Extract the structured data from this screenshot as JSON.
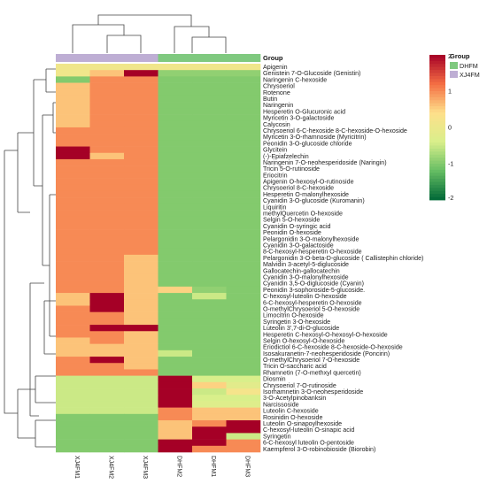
{
  "chart_data": {
    "type": "heatmap",
    "title": "",
    "columns": [
      "XJ4FM1",
      "XJ4FM2",
      "XJ4FM3",
      "DHFM2",
      "DHFM1",
      "DHFM3"
    ],
    "column_groups": [
      "XJ4FM",
      "XJ4FM",
      "XJ4FM",
      "DHFM",
      "DHFM",
      "DHFM"
    ],
    "group_label": "Group",
    "group_colors": {
      "DHFM": "#7fc97f",
      "XJ4FM": "#beaed4"
    },
    "color_scale": {
      "min": -2,
      "max": 2,
      "ticks": [
        "2",
        "1",
        "0",
        "-1",
        "-2"
      ],
      "stops": [
        "#006837",
        "#66bd63",
        "#d9ef8b",
        "#fee08b",
        "#f46d43",
        "#a50026"
      ]
    },
    "rows": [
      "Apigenin",
      "Genistein 7-O-Glucoside (Genistin)",
      "Naringenin C-hexoside",
      "Chrysoeriol",
      "Rotenone",
      "Butin",
      "Naringenin",
      "Hesperetin O-Glucuronic acid",
      "Myricetin 3-O-galactoside",
      "Calycosin",
      "Chrysoeriol 6-C-hexoside 8-C-hexoside-O-hexoside",
      "Myricetin 3-O-rhamnoside (Myricitrin)",
      "Peonidin 3-O-glucoside chloride",
      "Glycitein",
      "(-)-Epiafzelechin",
      "Naringenin 7-O-neohesperidoside (Naringin)",
      "Tricin 5-O-rutinoside",
      "Eriocitrin",
      "Apigenin O-hexosyl-O-rutinoside",
      "Chrysoeriol 8-C-hexoside",
      "Hesperetin O-malonylhexoside",
      "Cyanidin 3-O-glucoside (Kuromanin)",
      "Liquiritin",
      "methylQuercetin O-hexoside",
      "Selgin 5-O-hexoside",
      "Cyanidin O-syringic acid",
      "Peonidin O-hexoside",
      "Pelargonidin 3-O-malonylhexoside",
      "Cyanidin 3-O-galactoside",
      "8-C-hexosyl-hesperetin O-hexoside",
      "Pelargonidin 3-O-beta-D-glucoside ( Callistephin chloride)",
      "Malvidin 3-acetyl-5-diglucoside",
      "Gallocatechin-gallocatechin",
      "Cyanidin 3-O-malonylhexoside",
      "Cyanidin 3,5-O-diglucoside (Cyanin)",
      "Peonidin 3-sophoroside-5-glucoside.",
      "C-hexosyl-luteolin O-hexoside",
      "6-C-hexosyl-hesperetin O-hexoside",
      "O-methylChrysoeriol 5-O-hexoside",
      "Limocitrin O-hexoside",
      "Syringetin 3-O-hexoside",
      "Luteolin 3',7-di-O-glucoside",
      "Hesperetin C-hexosyl-O-hexosyl-O-hexoside",
      "Selgin O-hexosyl-O-hexoside",
      "Eriodictiol 6-C-hexoside 8-C-hexoside-O-hexoside",
      "Isosakuranetin-7-neohesperidoside (Poncirin)",
      "O-methylChrysoeriol 7-O-hexoside",
      "Tricin O-saccharic acid",
      "Rhamnetin (7-O-methxyl quercetin)",
      "Diosmin",
      "Chrysoeriol 7-O-rutinoside",
      "Isorhamnetin 3-O-neohesperidoside",
      "3-O-Acetylpinobanksin",
      "Narcissoside",
      "Luteolin C-hexoside",
      "Rosinidin O-hexoside",
      "Luteolin O-sinapoylhexoside",
      "C-hexosyl-luteolin O-sinapic acid",
      "Syringetin",
      "6-C-hexosyl luteolin O-pentoside",
      "Kaempferol 3-O-robinobioside (Biorobin)"
    ],
    "values": [
      [
        0.1,
        0.1,
        0.1,
        0.1,
        0.1,
        0.1
      ],
      [
        0.1,
        0.6,
        2.0,
        -0.9,
        -0.9,
        -0.9
      ],
      [
        -1,
        1,
        1,
        -1,
        -1,
        -1
      ],
      [
        0.6,
        1,
        1,
        -1,
        -1,
        -1
      ],
      [
        0.6,
        1,
        1,
        -1,
        -1,
        -1
      ],
      [
        0.6,
        1,
        1,
        -1,
        -1,
        -1
      ],
      [
        0.6,
        1,
        1,
        -1,
        -1,
        -1
      ],
      [
        0.6,
        1,
        1,
        -1,
        -1,
        -1
      ],
      [
        0.6,
        1,
        1,
        -1,
        -1,
        -1
      ],
      [
        0.6,
        1,
        1,
        -1,
        -1,
        -1
      ],
      [
        1,
        1,
        1,
        -1,
        -1,
        -1
      ],
      [
        1,
        1,
        1,
        -1,
        -1,
        -1
      ],
      [
        1,
        1,
        1,
        -1,
        -1,
        -1
      ],
      [
        2,
        1,
        1,
        -1,
        -1,
        -1
      ],
      [
        2,
        0.6,
        1,
        -1,
        -1,
        -1
      ],
      [
        1,
        1,
        1,
        -1,
        -1,
        -1
      ],
      [
        1,
        1,
        1,
        -1,
        -1,
        -1
      ],
      [
        1,
        1,
        1,
        -1,
        -1,
        -1
      ],
      [
        1,
        1,
        1,
        -1,
        -1,
        -1
      ],
      [
        1,
        1,
        1,
        -1,
        -1,
        -1
      ],
      [
        1,
        1,
        1,
        -1,
        -1,
        -1
      ],
      [
        1,
        1,
        1,
        -1,
        -1,
        -1
      ],
      [
        1,
        1,
        1,
        -1,
        -1,
        -1
      ],
      [
        1,
        1,
        1,
        -1,
        -1,
        -1
      ],
      [
        1,
        1,
        1,
        -1,
        -1,
        -1
      ],
      [
        1,
        1,
        1,
        -1,
        -1,
        -1
      ],
      [
        1,
        1,
        1,
        -1,
        -1,
        -1
      ],
      [
        1,
        1,
        1,
        -1,
        -1,
        -1
      ],
      [
        1,
        1,
        1,
        -1,
        -1,
        -1
      ],
      [
        1,
        1,
        1,
        -1,
        -1,
        -1
      ],
      [
        1,
        1,
        0.6,
        -1,
        -1,
        -1
      ],
      [
        1,
        1,
        0.6,
        -1,
        -1,
        -1
      ],
      [
        1,
        1,
        0.6,
        -1,
        -1,
        -1
      ],
      [
        1,
        1,
        0.6,
        -1,
        -1,
        -1
      ],
      [
        1,
        1,
        0.6,
        -1,
        -1,
        -1
      ],
      [
        1,
        1,
        0.6,
        0.5,
        -0.9,
        -1
      ],
      [
        0.6,
        2,
        0.6,
        -1,
        -0.5,
        -1
      ],
      [
        0.6,
        2,
        0.6,
        -1,
        -1,
        -1
      ],
      [
        1,
        2,
        0.6,
        -1,
        -1,
        -1
      ],
      [
        1,
        1,
        0.6,
        -1,
        -1,
        -1
      ],
      [
        1,
        1,
        0.6,
        -1,
        -1,
        -1
      ],
      [
        1,
        2,
        2,
        -1,
        -1,
        -1
      ],
      [
        1,
        1,
        0.6,
        -1,
        -1,
        -1
      ],
      [
        0.6,
        1,
        0.6,
        -1,
        -1,
        -1
      ],
      [
        0.6,
        0.6,
        0.6,
        -1,
        -1,
        -1
      ],
      [
        0.6,
        0.6,
        0.6,
        -0.5,
        -1,
        -1
      ],
      [
        1,
        2,
        0.6,
        -1,
        -1,
        -1
      ],
      [
        1,
        1,
        0.6,
        -1,
        -1,
        -1
      ],
      [
        1,
        1,
        1,
        -1,
        -1,
        -1
      ],
      [
        -0.5,
        -0.5,
        -0.5,
        2,
        -0.4,
        -0.4
      ],
      [
        -0.5,
        -0.5,
        -0.5,
        2,
        0.5,
        -0.2
      ],
      [
        -0.5,
        -0.5,
        -0.5,
        2,
        -0.5,
        0.2
      ],
      [
        -0.5,
        -0.5,
        -0.5,
        2,
        -0.4,
        -0.4
      ],
      [
        -0.5,
        -0.5,
        -0.5,
        2,
        -0.3,
        -0.3
      ],
      [
        -0.5,
        -0.5,
        -0.5,
        1,
        0.6,
        0.6
      ],
      [
        -1,
        -1,
        -1,
        1,
        0.6,
        0.6
      ],
      [
        -1,
        -1,
        -1,
        0.6,
        1,
        2
      ],
      [
        -1,
        -1,
        -1,
        0.6,
        2,
        2
      ],
      [
        -1,
        -1,
        -1,
        0.6,
        2,
        -0.5
      ],
      [
        -1,
        -1,
        -1,
        2,
        2,
        1
      ],
      [
        -1,
        -1,
        -1,
        2,
        1,
        1
      ]
    ]
  }
}
